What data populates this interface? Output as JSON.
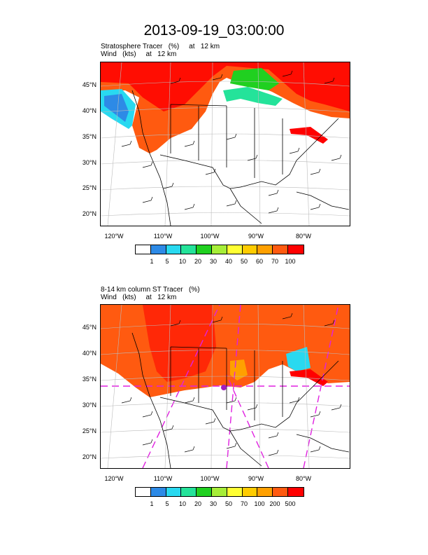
{
  "title": "2013-09-19_03:00:00",
  "panel1": {
    "subtitle_line1": "Stratosphere Tracer   (%)     at   12 km",
    "subtitle_line2": "Wind   (kts)     at   12 km",
    "colorbar_labels": [
      "1",
      "5",
      "10",
      "20",
      "30",
      "40",
      "50",
      "60",
      "70",
      "100"
    ]
  },
  "panel2": {
    "subtitle_line1": "8-14 km column ST Tracer   (%)",
    "subtitle_line2": "Wind   (kts)     at   12 km",
    "colorbar_labels": [
      "1",
      "5",
      "10",
      "20",
      "30",
      "50",
      "70",
      "100",
      "200",
      "500"
    ]
  },
  "lat_labels": [
    "45°N",
    "40°N",
    "35°N",
    "30°N",
    "25°N",
    "20°N"
  ],
  "lon_labels": [
    "120°W",
    "110°W",
    "100°W",
    "90°W",
    "80°W"
  ],
  "colorbar_colors": [
    "#ffffff",
    "#2d8ae6",
    "#29d9f0",
    "#24e39a",
    "#20d020",
    "#a6ee38",
    "#ffff33",
    "#ffcc00",
    "#ffa000",
    "#ff5a10",
    "#ff0000"
  ],
  "fill_color": "#ff5a10",
  "dashed_color": "#e020e0"
}
